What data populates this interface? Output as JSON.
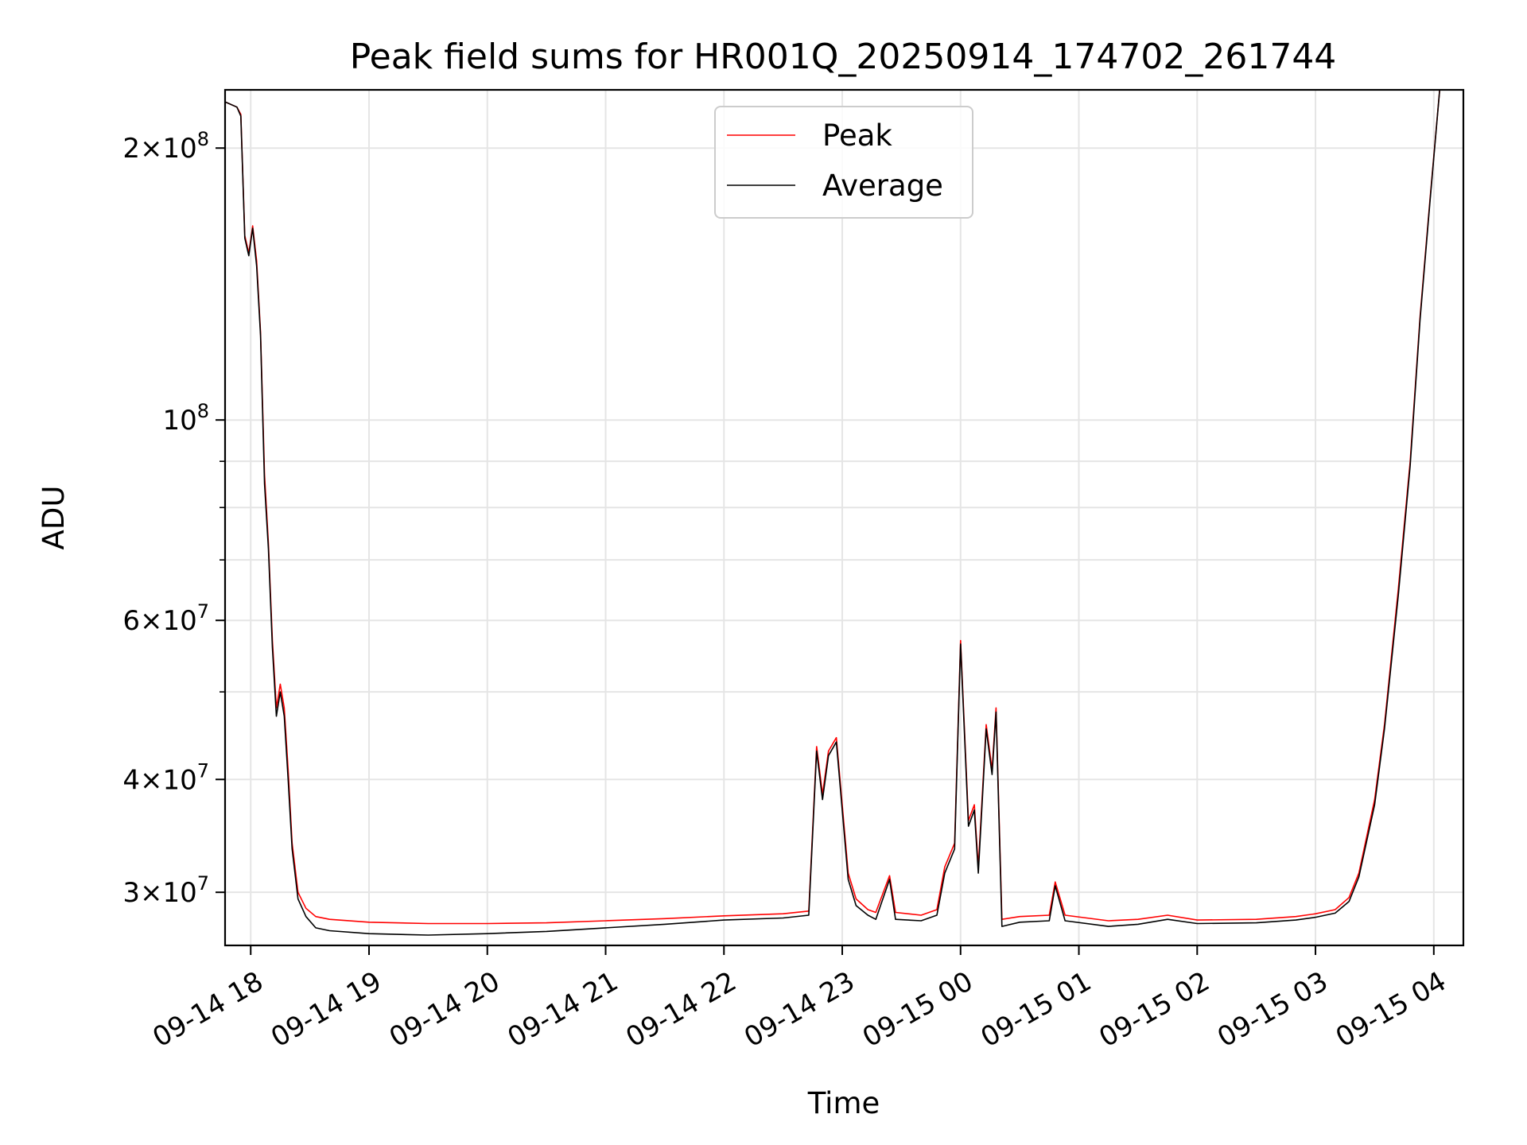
{
  "chart_data": {
    "type": "line",
    "title": "Peak field sums for HR001Q_20250914_174702_261744",
    "xlabel": "Time",
    "ylabel": "ADU",
    "y_scale": "log",
    "ylim": [
      26200000,
      232000000
    ],
    "xlim": [
      "2025-09-14 17:47",
      "2025-09-15 04:15"
    ],
    "grid": true,
    "legend_position": "top-center",
    "x_ticks": [
      {
        "t": "2025-09-14 18:00",
        "label": "09-14 18"
      },
      {
        "t": "2025-09-14 19:00",
        "label": "09-14 19"
      },
      {
        "t": "2025-09-14 20:00",
        "label": "09-14 20"
      },
      {
        "t": "2025-09-14 21:00",
        "label": "09-14 21"
      },
      {
        "t": "2025-09-14 22:00",
        "label": "09-14 22"
      },
      {
        "t": "2025-09-14 23:00",
        "label": "09-14 23"
      },
      {
        "t": "2025-09-15 00:00",
        "label": "09-15 00"
      },
      {
        "t": "2025-09-15 01:00",
        "label": "09-15 01"
      },
      {
        "t": "2025-09-15 02:00",
        "label": "09-15 02"
      },
      {
        "t": "2025-09-15 03:00",
        "label": "09-15 03"
      },
      {
        "t": "2025-09-15 04:00",
        "label": "09-15 04"
      }
    ],
    "y_major_ticks": [
      {
        "value": 30000000,
        "mant": "3",
        "exp": "7"
      },
      {
        "value": 40000000,
        "mant": "4",
        "exp": "7"
      },
      {
        "value": 60000000,
        "mant": "6",
        "exp": "7"
      },
      {
        "value": 100000000,
        "mant": "",
        "exp": "8"
      },
      {
        "value": 200000000,
        "mant": "2",
        "exp": "8"
      }
    ],
    "y_minor_ticks": [
      50000000,
      70000000,
      80000000,
      90000000
    ],
    "series": [
      {
        "name": "Peak",
        "color": "#ff0000",
        "points": [
          [
            "2025-09-14 17:47",
            225000000
          ],
          [
            "2025-09-14 17:53",
            222000000
          ],
          [
            "2025-09-14 17:55",
            218000000
          ],
          [
            "2025-09-14 17:57",
            160000000
          ],
          [
            "2025-09-14 17:59",
            153000000
          ],
          [
            "2025-09-14 18:01",
            164000000
          ],
          [
            "2025-09-14 18:03",
            150000000
          ],
          [
            "2025-09-14 18:05",
            125000000
          ],
          [
            "2025-09-14 18:07",
            87000000
          ],
          [
            "2025-09-14 18:09",
            73000000
          ],
          [
            "2025-09-14 18:11",
            57000000
          ],
          [
            "2025-09-14 18:13",
            48000000
          ],
          [
            "2025-09-14 18:15",
            51000000
          ],
          [
            "2025-09-14 18:17",
            48000000
          ],
          [
            "2025-09-14 18:19",
            41000000
          ],
          [
            "2025-09-14 18:21",
            34000000
          ],
          [
            "2025-09-14 18:24",
            30000000
          ],
          [
            "2025-09-14 18:28",
            28800000
          ],
          [
            "2025-09-14 18:33",
            28200000
          ],
          [
            "2025-09-14 18:40",
            28000000
          ],
          [
            "2025-09-14 19:00",
            27800000
          ],
          [
            "2025-09-14 19:30",
            27700000
          ],
          [
            "2025-09-14 20:00",
            27700000
          ],
          [
            "2025-09-14 20:30",
            27750000
          ],
          [
            "2025-09-14 21:00",
            27900000
          ],
          [
            "2025-09-14 21:30",
            28050000
          ],
          [
            "2025-09-14 22:00",
            28250000
          ],
          [
            "2025-09-14 22:30",
            28400000
          ],
          [
            "2025-09-14 22:43",
            28600000
          ],
          [
            "2025-09-14 22:47",
            43500000
          ],
          [
            "2025-09-14 22:50",
            38500000
          ],
          [
            "2025-09-14 22:53",
            43000000
          ],
          [
            "2025-09-14 22:57",
            44500000
          ],
          [
            "2025-09-14 23:03",
            31500000
          ],
          [
            "2025-09-14 23:07",
            29500000
          ],
          [
            "2025-09-14 23:13",
            28700000
          ],
          [
            "2025-09-14 23:17",
            28500000
          ],
          [
            "2025-09-14 23:24",
            31300000
          ],
          [
            "2025-09-14 23:27",
            28500000
          ],
          [
            "2025-09-14 23:40",
            28300000
          ],
          [
            "2025-09-14 23:48",
            28700000
          ],
          [
            "2025-09-14 23:52",
            32000000
          ],
          [
            "2025-09-14 23:57",
            34000000
          ],
          [
            "2025-09-15 00:00",
            57000000
          ],
          [
            "2025-09-15 00:04",
            36000000
          ],
          [
            "2025-09-15 00:07",
            37500000
          ],
          [
            "2025-09-15 00:09",
            32000000
          ],
          [
            "2025-09-15 00:13",
            46000000
          ],
          [
            "2025-09-15 00:16",
            41000000
          ],
          [
            "2025-09-15 00:18",
            48000000
          ],
          [
            "2025-09-15 00:21",
            28000000
          ],
          [
            "2025-09-15 00:30",
            28200000
          ],
          [
            "2025-09-15 00:45",
            28300000
          ],
          [
            "2025-09-15 00:48",
            30800000
          ],
          [
            "2025-09-15 00:53",
            28300000
          ],
          [
            "2025-09-15 01:15",
            27900000
          ],
          [
            "2025-09-15 01:30",
            28000000
          ],
          [
            "2025-09-15 01:45",
            28300000
          ],
          [
            "2025-09-15 02:00",
            27950000
          ],
          [
            "2025-09-15 02:30",
            28000000
          ],
          [
            "2025-09-15 02:50",
            28200000
          ],
          [
            "2025-09-15 03:00",
            28400000
          ],
          [
            "2025-09-15 03:10",
            28700000
          ],
          [
            "2025-09-15 03:17",
            29600000
          ],
          [
            "2025-09-15 03:22",
            31500000
          ],
          [
            "2025-09-15 03:30",
            38000000
          ],
          [
            "2025-09-15 03:35",
            46000000
          ],
          [
            "2025-09-15 03:42",
            65000000
          ],
          [
            "2025-09-15 03:48",
            90000000
          ],
          [
            "2025-09-15 03:53",
            130000000
          ],
          [
            "2025-09-15 03:58",
            175000000
          ],
          [
            "2025-09-15 04:03",
            232000000
          ]
        ]
      },
      {
        "name": "Average",
        "color": "#000000",
        "points": [
          [
            "2025-09-14 17:47",
            225000000
          ],
          [
            "2025-09-14 17:53",
            222000000
          ],
          [
            "2025-09-14 17:55",
            217000000
          ],
          [
            "2025-09-14 17:57",
            159000000
          ],
          [
            "2025-09-14 17:59",
            152000000
          ],
          [
            "2025-09-14 18:01",
            163000000
          ],
          [
            "2025-09-14 18:03",
            148000000
          ],
          [
            "2025-09-14 18:05",
            124000000
          ],
          [
            "2025-09-14 18:07",
            85000000
          ],
          [
            "2025-09-14 18:09",
            72000000
          ],
          [
            "2025-09-14 18:11",
            56000000
          ],
          [
            "2025-09-14 18:13",
            47000000
          ],
          [
            "2025-09-14 18:15",
            50000000
          ],
          [
            "2025-09-14 18:17",
            47000000
          ],
          [
            "2025-09-14 18:19",
            40000000
          ],
          [
            "2025-09-14 18:21",
            33500000
          ],
          [
            "2025-09-14 18:24",
            29500000
          ],
          [
            "2025-09-14 18:28",
            28200000
          ],
          [
            "2025-09-14 18:33",
            27400000
          ],
          [
            "2025-09-14 18:40",
            27200000
          ],
          [
            "2025-09-14 19:00",
            27000000
          ],
          [
            "2025-09-14 19:30",
            26900000
          ],
          [
            "2025-09-14 20:00",
            27000000
          ],
          [
            "2025-09-14 20:30",
            27150000
          ],
          [
            "2025-09-14 21:00",
            27400000
          ],
          [
            "2025-09-14 21:30",
            27650000
          ],
          [
            "2025-09-14 22:00",
            27950000
          ],
          [
            "2025-09-14 22:30",
            28100000
          ],
          [
            "2025-09-14 22:43",
            28300000
          ],
          [
            "2025-09-14 22:47",
            43000000
          ],
          [
            "2025-09-14 22:50",
            38000000
          ],
          [
            "2025-09-14 22:53",
            42500000
          ],
          [
            "2025-09-14 22:57",
            44000000
          ],
          [
            "2025-09-14 23:03",
            31000000
          ],
          [
            "2025-09-14 23:07",
            29000000
          ],
          [
            "2025-09-14 23:13",
            28300000
          ],
          [
            "2025-09-14 23:17",
            28000000
          ],
          [
            "2025-09-14 23:24",
            31000000
          ],
          [
            "2025-09-14 23:27",
            28000000
          ],
          [
            "2025-09-14 23:40",
            27900000
          ],
          [
            "2025-09-14 23:48",
            28300000
          ],
          [
            "2025-09-14 23:52",
            31500000
          ],
          [
            "2025-09-14 23:57",
            33500000
          ],
          [
            "2025-09-15 00:00",
            56500000
          ],
          [
            "2025-09-15 00:04",
            35500000
          ],
          [
            "2025-09-15 00:07",
            37000000
          ],
          [
            "2025-09-15 00:09",
            31500000
          ],
          [
            "2025-09-15 00:13",
            45500000
          ],
          [
            "2025-09-15 00:16",
            40500000
          ],
          [
            "2025-09-15 00:18",
            47500000
          ],
          [
            "2025-09-15 00:21",
            27500000
          ],
          [
            "2025-09-15 00:30",
            27800000
          ],
          [
            "2025-09-15 00:45",
            27900000
          ],
          [
            "2025-09-15 00:48",
            30500000
          ],
          [
            "2025-09-15 00:53",
            27900000
          ],
          [
            "2025-09-15 01:15",
            27500000
          ],
          [
            "2025-09-15 01:30",
            27650000
          ],
          [
            "2025-09-15 01:45",
            28000000
          ],
          [
            "2025-09-15 02:00",
            27700000
          ],
          [
            "2025-09-15 02:30",
            27750000
          ],
          [
            "2025-09-15 02:50",
            27950000
          ],
          [
            "2025-09-15 03:00",
            28150000
          ],
          [
            "2025-09-15 03:10",
            28450000
          ],
          [
            "2025-09-15 03:17",
            29300000
          ],
          [
            "2025-09-15 03:22",
            31200000
          ],
          [
            "2025-09-15 03:30",
            37500000
          ],
          [
            "2025-09-15 03:35",
            45500000
          ],
          [
            "2025-09-15 03:42",
            64000000
          ],
          [
            "2025-09-15 03:48",
            89000000
          ],
          [
            "2025-09-15 03:53",
            129000000
          ],
          [
            "2025-09-15 03:58",
            174000000
          ],
          [
            "2025-09-15 04:03",
            232000000
          ]
        ]
      }
    ]
  }
}
